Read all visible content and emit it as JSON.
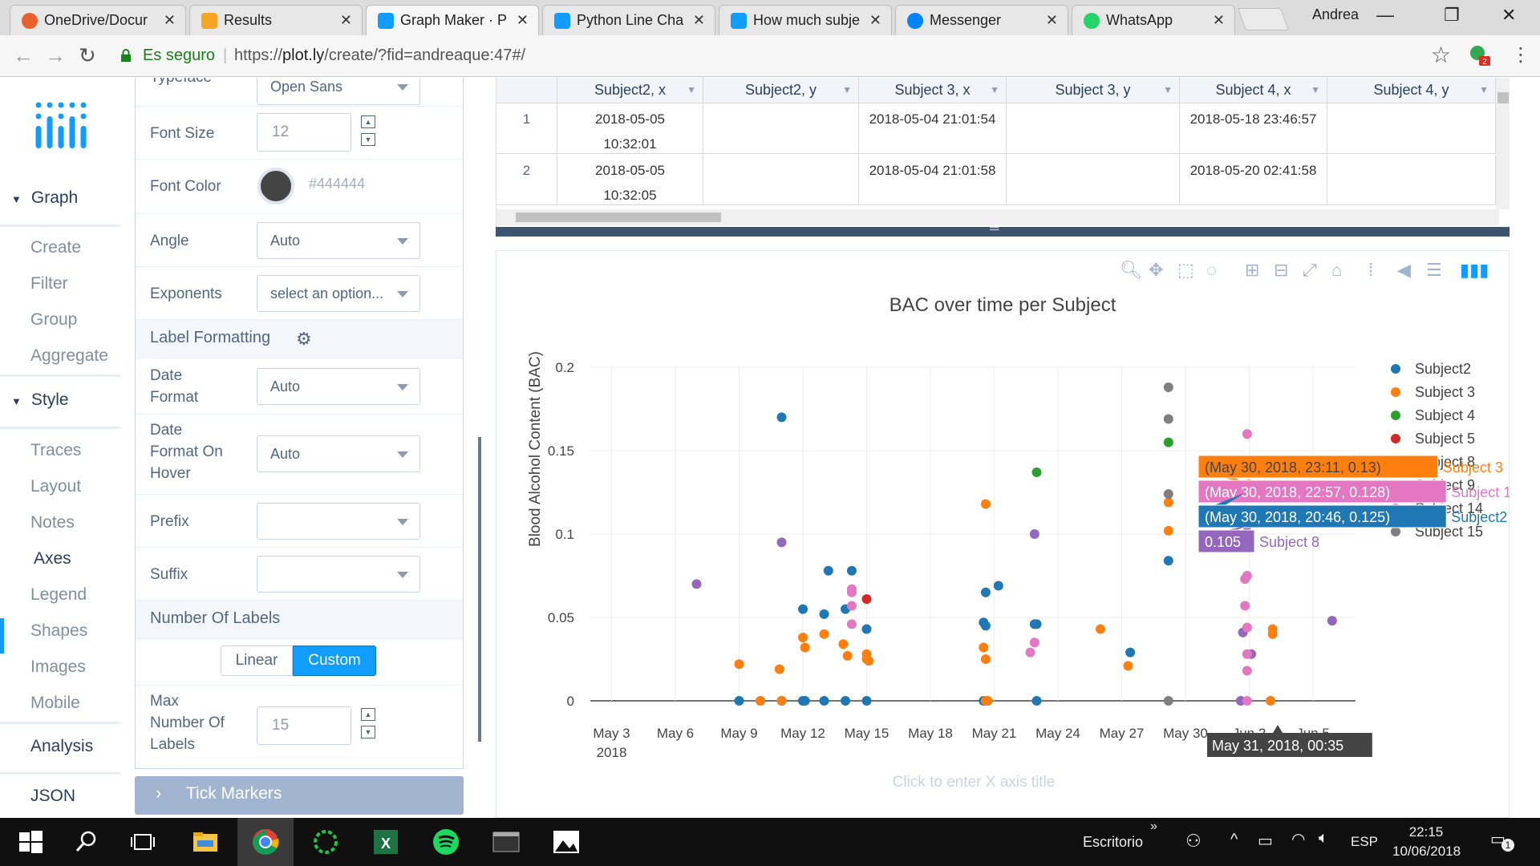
{
  "browser": {
    "tabs": [
      {
        "label": "OneDrive/Docur",
        "color": "#e8602c"
      },
      {
        "label": "Results",
        "color": "#f5a623"
      },
      {
        "label": "Graph Maker · P",
        "color": "#119dff"
      },
      {
        "label": "Python Line Cha",
        "color": "#119dff"
      },
      {
        "label": "How much subje",
        "color": "#119dff"
      },
      {
        "label": "Messenger",
        "color": "#0084ff"
      },
      {
        "label": "WhatsApp",
        "color": "#25d366"
      }
    ],
    "user": "Andrea",
    "secure_label": "Es seguro",
    "url_prefix": "https://",
    "url_host": "plot.ly",
    "url_path": "/create/?fid=andreaque:47#/",
    "ext_badge": "2"
  },
  "leftnav": {
    "graph_header": "Graph",
    "graph_items": [
      "Create",
      "Filter",
      "Group",
      "Aggregate"
    ],
    "style_header": "Style",
    "style_items": [
      "Traces",
      "Layout",
      "Notes",
      "Axes",
      "Legend",
      "Shapes",
      "Images",
      "Mobile"
    ],
    "analysis": "Analysis",
    "json": "JSON"
  },
  "panel": {
    "typeface_label": "Typeface",
    "typeface_value": "Open Sans",
    "font_size_label": "Font Size",
    "font_size_value": "12",
    "font_color_label": "Font Color",
    "font_color_value": "#444444",
    "angle_label": "Angle",
    "angle_value": "Auto",
    "exponents_label": "Exponents",
    "exponents_placeholder": "select an option...",
    "label_formatting": "Label Formatting",
    "date_format_label_1": "Date",
    "date_format_label_2": "Format",
    "date_format_value": "Auto",
    "date_hover_label_1": "Date",
    "date_hover_label_2": "Format On",
    "date_hover_label_3": "Hover",
    "date_hover_value": "Auto",
    "prefix_label": "Prefix",
    "suffix_label": "Suffix",
    "number_of_labels": "Number Of Labels",
    "toggle_linear": "Linear",
    "toggle_custom": "Custom",
    "max_labels_1": "Max",
    "max_labels_2": "Number Of",
    "max_labels_3": "Labels",
    "max_labels_value": "15",
    "tick_markers": "Tick Markers"
  },
  "grid": {
    "headers": [
      "Subject2, x",
      "Subject2, y",
      "Subject 3, x",
      "Subject 3, y",
      "Subject 4, x",
      "Subject 4, y"
    ],
    "rows": [
      {
        "n": "1",
        "c1a": "2018-05-05",
        "c1b": "10:32:01",
        "c3": "2018-05-04 21:01:54",
        "c5": "2018-05-18 23:46:57"
      },
      {
        "n": "2",
        "c1a": "2018-05-05",
        "c1b": "10:32:05",
        "c3": "2018-05-04 21:01:58",
        "c5": "2018-05-20 02:41:58"
      }
    ]
  },
  "chart_data": {
    "type": "scatter",
    "title": "BAC over time per Subject",
    "ylabel": "Blood Alcohol Content (BAC)",
    "xlabel_placeholder": "Click to enter X axis title",
    "x_ticks": [
      "May 3",
      "May 6",
      "May 9",
      "May 12",
      "May 15",
      "May 18",
      "May 21",
      "May 24",
      "May 27",
      "May 30",
      "Jun 2",
      "Jun 5"
    ],
    "x_tick_year": "2018",
    "y_ticks": [
      "0",
      "0.05",
      "0.1",
      "0.15",
      "0.2"
    ],
    "ylim": [
      0,
      0.2
    ],
    "xlim": [
      "2018-05-02",
      "2018-06-07"
    ],
    "grid": true,
    "legend_position": "right",
    "legend": [
      "Subject2",
      "Subject 3",
      "Subject 4",
      "Subject 5",
      "Subject 8",
      "Subject 9",
      "Subject 14",
      "Subject 15"
    ],
    "series": [
      {
        "name": "Subject2",
        "color": "#1f77b4",
        "points": [
          [
            7.0,
            0
          ],
          [
            8.0,
            0
          ],
          [
            9.0,
            0
          ],
          [
            10.0,
            0
          ],
          [
            11.0,
            0
          ],
          [
            12.0,
            0
          ],
          [
            13.0,
            0
          ],
          [
            10.1,
            0
          ],
          [
            9.0,
            0.17
          ],
          [
            10.0,
            0.055
          ],
          [
            11.0,
            0.052
          ],
          [
            12.0,
            0.055
          ],
          [
            11.2,
            0.078
          ],
          [
            12.3,
            0.078
          ],
          [
            13.0,
            0.043
          ],
          [
            18.5,
            0
          ],
          [
            21.0,
            0
          ],
          [
            18.6,
            0.065
          ],
          [
            18.5,
            0.047
          ],
          [
            18.6,
            0.045
          ],
          [
            19.2,
            0.069
          ],
          [
            21.0,
            0.046
          ],
          [
            20.9,
            0.046
          ],
          [
            25.4,
            0.029
          ],
          [
            27.2,
            0.084
          ],
          [
            30.85,
            0.125
          ]
        ]
      },
      {
        "name": "Subject 3",
        "color": "#ff7f0e",
        "points": [
          [
            8.0,
            0
          ],
          [
            9.0,
            0
          ],
          [
            7.0,
            0.022
          ],
          [
            8.9,
            0.019
          ],
          [
            10.0,
            0.038
          ],
          [
            10.1,
            0.032
          ],
          [
            11.0,
            0.04
          ],
          [
            11.9,
            0.034
          ],
          [
            12.1,
            0.027
          ],
          [
            13.0,
            0.028
          ],
          [
            13.0,
            0.025
          ],
          [
            13.1,
            0.024
          ],
          [
            18.6,
            0
          ],
          [
            18.7,
            0
          ],
          [
            18.6,
            0.118
          ],
          [
            18.5,
            0.032
          ],
          [
            18.6,
            0.025
          ],
          [
            24.0,
            0.043
          ],
          [
            25.3,
            0.021
          ],
          [
            27.2,
            0.119
          ],
          [
            27.2,
            0.102
          ],
          [
            32.0,
            0
          ],
          [
            32.1,
            0.043
          ],
          [
            32.1,
            0.04
          ],
          [
            30.98,
            0.13
          ]
        ]
      },
      {
        "name": "Subject 4",
        "color": "#2ca02c",
        "points": [
          [
            21.0,
            0.137
          ],
          [
            27.2,
            0.155
          ]
        ]
      },
      {
        "name": "Subject 5",
        "color": "#d62728",
        "points": [
          [
            13.0,
            0.061
          ]
        ]
      },
      {
        "name": "Subject 8",
        "color": "#9467bd",
        "points": [
          [
            5.0,
            0.07
          ],
          [
            9.0,
            0.095
          ],
          [
            20.9,
            0.1
          ],
          [
            30.9,
            0.105
          ],
          [
            30.9,
            0.137
          ],
          [
            30.7,
            0.041
          ],
          [
            31.1,
            0.028
          ],
          [
            30.6,
            0
          ],
          [
            34.9,
            0.048
          ]
        ]
      },
      {
        "name": "Subject 9",
        "color": "#8c564b",
        "points": []
      },
      {
        "name": "Subject 14",
        "color": "#e377c2",
        "points": [
          [
            12.3,
            0.067
          ],
          [
            12.3,
            0.065
          ],
          [
            12.3,
            0.057
          ],
          [
            12.3,
            0.046
          ],
          [
            20.9,
            0.035
          ],
          [
            20.7,
            0.029
          ],
          [
            30.9,
            0.16
          ],
          [
            30.92,
            0.128
          ],
          [
            30.9,
            0.075
          ],
          [
            30.8,
            0.073
          ],
          [
            30.8,
            0.057
          ],
          [
            30.9,
            0.044
          ],
          [
            30.9,
            0.028
          ],
          [
            30.9,
            0.018
          ],
          [
            30.9,
            0
          ]
        ]
      },
      {
        "name": "Subject 15",
        "color": "#7f7f7f",
        "points": [
          [
            27.2,
            0
          ],
          [
            27.2,
            0.188
          ],
          [
            27.2,
            0.169
          ],
          [
            27.2,
            0.124
          ]
        ]
      }
    ],
    "hover_labels": [
      {
        "text": "(May 30, 2018, 23:11, 0.13)",
        "name": "Subject 3",
        "color": "#ff7f0e"
      },
      {
        "text": "(May 30, 2018, 22:57, 0.128)",
        "name": "Subject 14",
        "color": "#e377c2"
      },
      {
        "text": "(May 30, 2018, 20:46, 0.125)",
        "name": "Subject2",
        "color": "#1f77b4"
      },
      {
        "text": "0.105",
        "name": "Subject 8",
        "color": "#9467bd"
      }
    ],
    "x_hover_label": "May 31, 2018, 00:35"
  },
  "taskbar": {
    "desktop_label": "Escritorio",
    "lang": "ESP",
    "time": "22:15",
    "date": "10/06/2018",
    "notif_count": "1"
  }
}
